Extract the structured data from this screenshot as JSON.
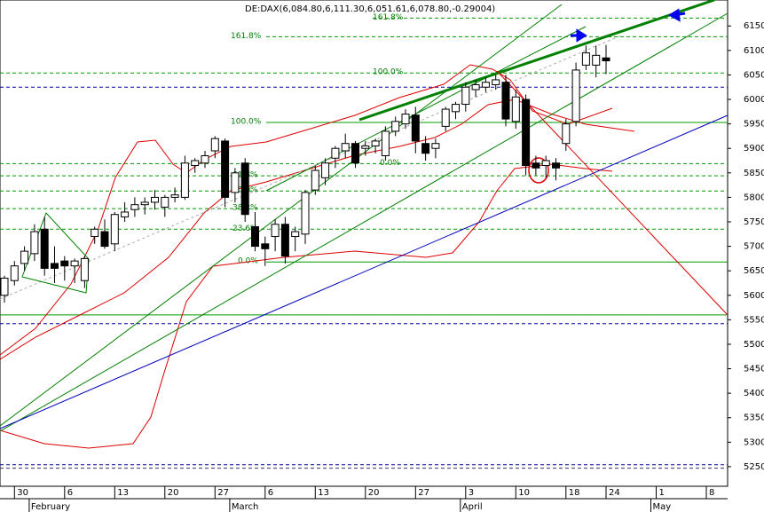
{
  "chart_data": {
    "type": "candlestick",
    "title": "DE:DAX(6,084.80,6,111.30,6,051.61,6,078.80,-0.29004)",
    "categories": [
      null,
      "30",
      null,
      null,
      null,
      null,
      "6",
      null,
      null,
      null,
      null,
      "13",
      null,
      null,
      null,
      null,
      "20",
      null,
      null,
      null,
      null,
      "27",
      null,
      null,
      null,
      null,
      "6",
      null,
      null,
      null,
      null,
      "13",
      null,
      null,
      null,
      null,
      "20",
      null,
      null,
      null,
      null,
      "27",
      null,
      null,
      null,
      null,
      "3",
      null,
      null,
      null,
      null,
      "10",
      null,
      null,
      null,
      null,
      "18",
      null,
      null,
      null,
      "24",
      null,
      null,
      null,
      null,
      "1",
      null,
      null,
      null,
      null,
      "8",
      null,
      null,
      null
    ],
    "months": [
      null,
      null,
      null,
      "February",
      null,
      null,
      null,
      null,
      null,
      null,
      null,
      null,
      null,
      null,
      null,
      null,
      null,
      null,
      null,
      null,
      null,
      null,
      null,
      "March",
      null,
      null,
      null,
      null,
      null,
      null,
      null,
      null,
      null,
      null,
      null,
      null,
      null,
      null,
      null,
      null,
      null,
      null,
      null,
      null,
      null,
      null,
      "April",
      null,
      null,
      null,
      null,
      null,
      null,
      null,
      null,
      null,
      null,
      null,
      null,
      null,
      null,
      null,
      null,
      null,
      null,
      "May",
      null,
      null,
      null,
      null,
      null,
      null,
      null,
      null
    ],
    "open": [
      5600,
      5630,
      5665,
      5685,
      5735,
      5665,
      5670,
      5660,
      5630,
      5720,
      5730,
      5705,
      5760,
      5775,
      5785,
      5790,
      5780,
      5800,
      5800,
      5865,
      5870,
      5895,
      5915,
      5810,
      5870,
      5740,
      5705,
      5720,
      5745,
      5720,
      5725,
      5815,
      5840,
      5880,
      5895,
      5910,
      5900,
      5905,
      5885,
      5935,
      5950,
      5968,
      5910,
      5900,
      5945,
      5975,
      5990,
      6020,
      6025,
      6030,
      6035,
      5955,
      6000,
      5870,
      5865,
      5870,
      5910,
      5955,
      6070,
      6070,
      6084.8,
      null,
      null,
      null,
      null,
      null,
      null,
      null,
      null,
      null,
      null,
      null,
      null,
      null
    ],
    "high": [
      5640,
      5670,
      5700,
      5745,
      5760,
      5700,
      5680,
      5675,
      5680,
      5740,
      5755,
      5770,
      5790,
      5800,
      5800,
      5815,
      5805,
      5820,
      5885,
      5880,
      5895,
      5925,
      5920,
      5860,
      5880,
      5770,
      5720,
      5755,
      5760,
      5740,
      5815,
      5865,
      5880,
      5905,
      5930,
      5915,
      5915,
      5920,
      5945,
      5965,
      5980,
      5985,
      5925,
      5920,
      5985,
      5995,
      6035,
      6040,
      6045,
      6050,
      6050,
      6020,
      6010,
      5885,
      5885,
      5880,
      5960,
      6075,
      6110,
      6110,
      6111.3,
      null,
      null,
      null,
      null,
      null,
      null,
      null,
      null,
      null,
      null,
      null,
      null,
      null
    ],
    "low": [
      5585,
      5620,
      5650,
      5670,
      5640,
      5625,
      5630,
      5625,
      5615,
      5705,
      5695,
      5690,
      5750,
      5760,
      5765,
      5775,
      5760,
      5790,
      5795,
      5850,
      5860,
      5880,
      5780,
      5790,
      5750,
      5690,
      5660,
      5690,
      5665,
      5690,
      5705,
      5805,
      5825,
      5860,
      5880,
      5860,
      5885,
      5890,
      5875,
      5925,
      5940,
      5890,
      5875,
      5880,
      5935,
      5960,
      5975,
      6005,
      6015,
      6020,
      5945,
      5940,
      5845,
      5845,
      5840,
      5835,
      5895,
      5945,
      6060,
      6045,
      6051.61,
      null,
      null,
      null,
      null,
      null,
      null,
      null,
      null,
      null,
      null,
      null,
      null,
      null
    ],
    "close": [
      5635,
      5660,
      5690,
      5730,
      5655,
      5655,
      5660,
      5670,
      5675,
      5735,
      5700,
      5765,
      5770,
      5785,
      5790,
      5800,
      5800,
      5805,
      5870,
      5875,
      5885,
      5920,
      5800,
      5850,
      5765,
      5700,
      5695,
      5745,
      5680,
      5730,
      5810,
      5855,
      5870,
      5900,
      5910,
      5870,
      5905,
      5915,
      5935,
      5955,
      5970,
      5915,
      5890,
      5910,
      5980,
      5990,
      6025,
      6030,
      6035,
      6040,
      5960,
      6005,
      5865,
      5860,
      5875,
      5860,
      5950,
      6060,
      6095,
      6090,
      6078.8,
      null,
      null,
      null,
      null,
      null,
      null,
      null,
      null,
      null,
      null,
      null,
      null,
      null
    ],
    "up_color": "#ffffff",
    "down_color": "#000000",
    "ylim": [
      5210,
      6203
    ],
    "yticks": [
      5250,
      5300,
      5350,
      5400,
      5450,
      5500,
      5550,
      5600,
      5650,
      5700,
      5750,
      5800,
      5850,
      5900,
      5950,
      6000,
      6050,
      6100,
      6150
    ],
    "levels": [
      {
        "value": 6166,
        "label": "161.8%",
        "style": "dashed",
        "color": "#009900"
      },
      {
        "value": 6128,
        "label": "161.8%",
        "style": "dashed",
        "color": "#009900"
      },
      {
        "value": 6054,
        "label": "100.0%",
        "style": "dashed",
        "color": "#009900"
      },
      {
        "value": 6025,
        "style": "dashed",
        "color": "#0000aa"
      },
      {
        "value": 5953,
        "label": "100.0%",
        "style": "solid",
        "color": "#009900"
      },
      {
        "value": 5869,
        "label": "0.0%",
        "style": "dashed",
        "color": "#009900"
      },
      {
        "value": 5844,
        "label": "61.8%",
        "style": "dashed",
        "color": "#009900"
      },
      {
        "value": 5813,
        "label": "50.0%",
        "style": "dashed",
        "color": "#009900"
      },
      {
        "value": 5777,
        "label": "38.2%",
        "style": "dashed",
        "color": "#009900"
      },
      {
        "value": 5735,
        "label": "23.6%",
        "style": "dashed",
        "color": "#009900"
      },
      {
        "value": 5668,
        "label": "0.0%",
        "style": "solid",
        "color": "#009900"
      },
      {
        "value": 5560,
        "style": "solid",
        "color": "#009900"
      },
      {
        "value": 5542,
        "style": "dashed",
        "color": "#0000aa"
      },
      {
        "value": 5254,
        "style": "dashed",
        "color": "#0000aa"
      },
      {
        "value": 5247,
        "style": "dashed",
        "color": "#333366"
      }
    ]
  }
}
